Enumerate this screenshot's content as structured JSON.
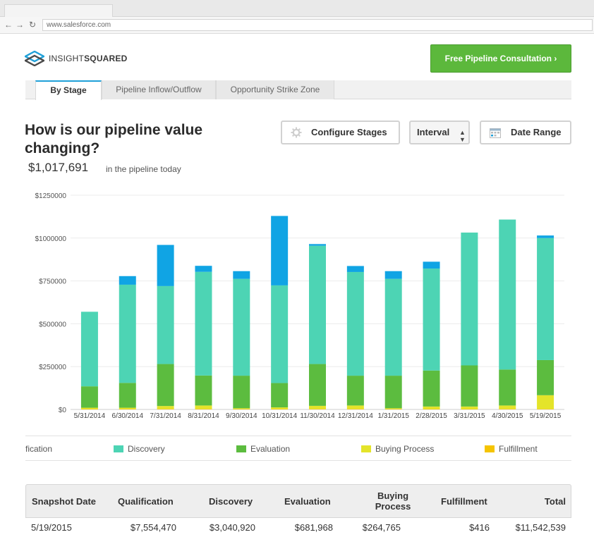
{
  "browser": {
    "url": "www.salesforce.com"
  },
  "header": {
    "logo_light": "INSIGHT",
    "logo_bold": "SQUARED",
    "consult_label": "Free Pipeline Consultation ›"
  },
  "tabs": [
    {
      "label": "By Stage",
      "active": true
    },
    {
      "label": "Pipeline Inflow/Outflow",
      "active": false
    },
    {
      "label": "Opportunity Strike Zone",
      "active": false
    }
  ],
  "main": {
    "title": "How is our pipeline value changing?",
    "total": "$1,017,691",
    "total_caption": "in the pipeline today",
    "configure_label": "Configure Stages",
    "interval_label": "Interval",
    "date_range_label": "Date Range"
  },
  "chart_data": {
    "type": "bar",
    "stacked": true,
    "categories": [
      "5/31/2014",
      "6/30/2014",
      "7/31/2014",
      "8/31/2014",
      "9/30/2014",
      "10/31/2014",
      "11/30/2014",
      "12/31/2014",
      "1/31/2015",
      "2/28/2015",
      "3/31/2015",
      "4/30/2015",
      "5/19/2015"
    ],
    "ylim": [
      0,
      1250000
    ],
    "yticks": [
      0,
      250000,
      500000,
      750000,
      1000000,
      1250000
    ],
    "ytick_labels": [
      "$0",
      "$250000",
      "$500000",
      "$750000",
      "$1000000",
      "$1250000"
    ],
    "grid": true,
    "series": [
      {
        "name": "Fulfillment",
        "color": "#f5c400",
        "values": [
          2000,
          2000,
          3000,
          3000,
          2000,
          2000,
          3000,
          3000,
          2000,
          2000,
          2000,
          3000,
          3000
        ]
      },
      {
        "name": "Buying Process",
        "color": "#e4e42a",
        "values": [
          8000,
          8000,
          17000,
          20000,
          5000,
          10000,
          18000,
          20000,
          5000,
          15000,
          15000,
          20000,
          80000
        ]
      },
      {
        "name": "Evaluation",
        "color": "#5cbc3f",
        "values": [
          125000,
          145000,
          245000,
          175000,
          190000,
          142000,
          244000,
          174000,
          190000,
          210000,
          240000,
          210000,
          205000
        ]
      },
      {
        "name": "Discovery",
        "color": "#4dd4b4",
        "values": [
          435000,
          573000,
          455000,
          605000,
          565000,
          570000,
          690000,
          605000,
          565000,
          595000,
          775000,
          875000,
          712000
        ]
      },
      {
        "name": "Qualification",
        "color": "#10a4e4",
        "values": [
          0,
          50000,
          240000,
          35000,
          45000,
          405000,
          10000,
          35000,
          45000,
          40000,
          0,
          0,
          15000
        ]
      }
    ]
  },
  "legend": [
    {
      "label": "fication",
      "color": "#10a4e4",
      "show_swatch": false
    },
    {
      "label": "Discovery",
      "color": "#4dd4b4",
      "show_swatch": true
    },
    {
      "label": "Evaluation",
      "color": "#5cbc3f",
      "show_swatch": true
    },
    {
      "label": "Buying Process",
      "color": "#e4e42a",
      "show_swatch": true
    },
    {
      "label": "Fulfillment",
      "color": "#f5c400",
      "show_swatch": true
    }
  ],
  "table": {
    "headers": [
      "Snapshot Date",
      "Qualification",
      "Discovery",
      "Evaluation",
      "Buying Process",
      "Fulfillment",
      "Total"
    ],
    "rows": [
      [
        "5/19/2015",
        "$7,554,470",
        "$3,040,920",
        "$681,968",
        "$264,765",
        "$416",
        "$11,542,539"
      ]
    ]
  }
}
